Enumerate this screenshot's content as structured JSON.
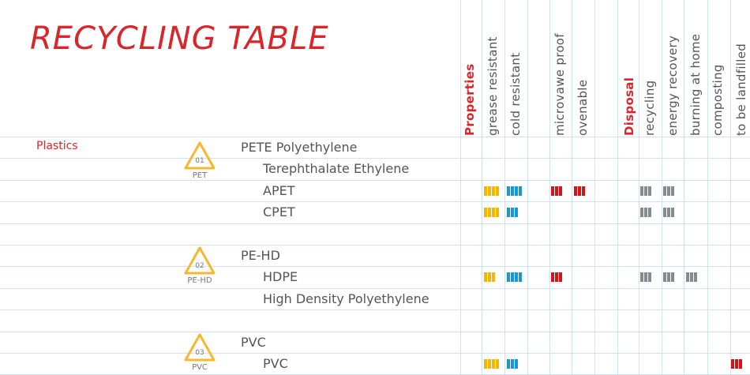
{
  "title": "RECYCLING TABLE",
  "colors": {
    "grid": "#cfe3f3",
    "accent": "#d9262b",
    "badge": "#f7b731",
    "yellow": "#f7b500",
    "blue": "#139ad6",
    "red": "#d4141b",
    "gray": "#7f8c94"
  },
  "columns": {
    "properties_label": "Properties",
    "properties": [
      "grease resistant",
      "cold resistant",
      "microvawe proof",
      "ovenable"
    ],
    "disposal_label": "Disposal",
    "disposal": [
      "recycling",
      "energy recovery",
      "burning at home",
      "composting",
      "to be landfilled"
    ]
  },
  "group": "Plastics",
  "badges": [
    {
      "number": "01",
      "code": "PET"
    },
    {
      "number": "02",
      "code": "PE-HD"
    },
    {
      "number": "03",
      "code": "PVC"
    }
  ],
  "rows": [
    {
      "text": "PETE Polyethylene",
      "style": "head"
    },
    {
      "text": "Terephthalate Ethylene",
      "style": "sub"
    },
    {
      "text": "APET",
      "style": "sub"
    },
    {
      "text": "CPET",
      "style": "sub"
    },
    {
      "text": "PE-HD",
      "style": "head"
    },
    {
      "text": "HDPE",
      "style": "sub"
    },
    {
      "text": "High Density Polyethylene",
      "style": "sub"
    },
    {
      "text": "PVC",
      "style": "head"
    },
    {
      "text": "PVC",
      "style": "sub"
    }
  ],
  "marks": [
    {
      "material": "APET",
      "column": "grease resistant",
      "color": "yellow",
      "count": 4
    },
    {
      "material": "APET",
      "column": "cold resistant",
      "color": "blue",
      "count": 4
    },
    {
      "material": "APET",
      "column": "microvawe proof",
      "color": "red",
      "count": 3
    },
    {
      "material": "APET",
      "column": "ovenable",
      "color": "red",
      "count": 3
    },
    {
      "material": "APET",
      "column": "recycling",
      "color": "gray",
      "count": 3
    },
    {
      "material": "APET",
      "column": "energy recovery",
      "color": "gray",
      "count": 3
    },
    {
      "material": "CPET",
      "column": "grease resistant",
      "color": "yellow",
      "count": 4
    },
    {
      "material": "CPET",
      "column": "cold resistant",
      "color": "blue",
      "count": 3
    },
    {
      "material": "CPET",
      "column": "recycling",
      "color": "gray",
      "count": 3
    },
    {
      "material": "CPET",
      "column": "energy recovery",
      "color": "gray",
      "count": 3
    },
    {
      "material": "HDPE",
      "column": "grease resistant",
      "color": "yellow",
      "count": 3
    },
    {
      "material": "HDPE",
      "column": "cold resistant",
      "color": "blue",
      "count": 4
    },
    {
      "material": "HDPE",
      "column": "microvawe proof",
      "color": "red",
      "count": 3
    },
    {
      "material": "HDPE",
      "column": "recycling",
      "color": "gray",
      "count": 3
    },
    {
      "material": "HDPE",
      "column": "energy recovery",
      "color": "gray",
      "count": 3
    },
    {
      "material": "HDPE",
      "column": "burning at home",
      "color": "gray",
      "count": 3
    },
    {
      "material": "PVC",
      "column": "grease resistant",
      "color": "yellow",
      "count": 4
    },
    {
      "material": "PVC",
      "column": "cold resistant",
      "color": "blue",
      "count": 3
    },
    {
      "material": "PVC",
      "column": "to be landfilled",
      "color": "red",
      "count": 3
    }
  ]
}
